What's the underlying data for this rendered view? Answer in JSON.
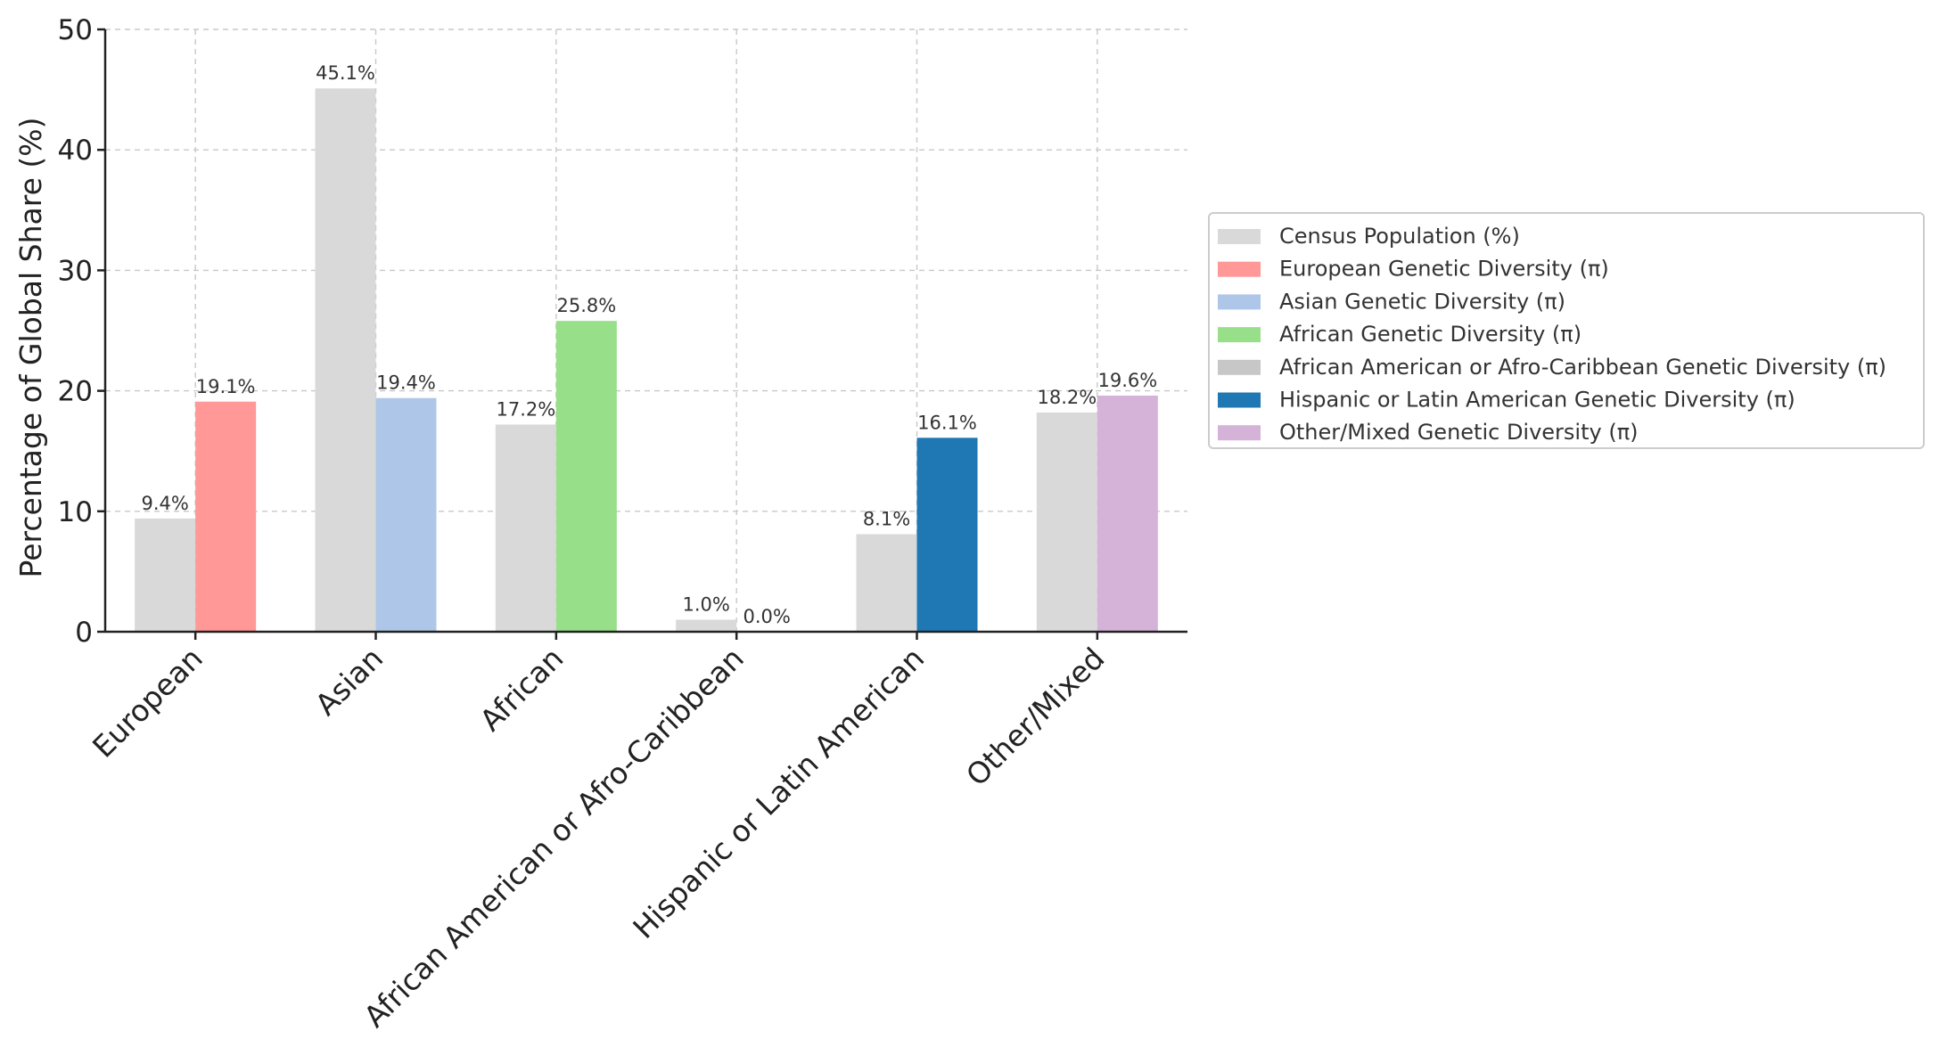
{
  "chart_data": {
    "type": "bar",
    "title": "",
    "xlabel": "",
    "ylabel": "Percentage of Global Share (%)",
    "ylim": [
      0,
      50
    ],
    "yticks": [
      0,
      10,
      20,
      30,
      40,
      50
    ],
    "grid": true,
    "legend_position": "right",
    "categories": [
      "European",
      "Asian",
      "African",
      "African American or Afro-Caribbean",
      "Hispanic or Latin American",
      "Other/Mixed"
    ],
    "census": {
      "name": "Census Population (%)",
      "color": "#d9d9d9",
      "values": [
        9.4,
        45.1,
        17.2,
        1.0,
        8.1,
        18.2
      ],
      "labels": [
        "9.4%",
        "45.1%",
        "17.2%",
        "1.0%",
        "8.1%",
        "18.2%"
      ]
    },
    "diversity": [
      {
        "name": "European Genetic Diversity (π)",
        "color": "#ff9896",
        "value": 19.1,
        "label": "19.1%"
      },
      {
        "name": "Asian Genetic Diversity (π)",
        "color": "#aec7e8",
        "value": 19.4,
        "label": "19.4%"
      },
      {
        "name": "African Genetic Diversity (π)",
        "color": "#98df8a",
        "value": 25.8,
        "label": "25.8%"
      },
      {
        "name": "African American or Afro-Caribbean Genetic Diversity (π)",
        "color": "#c7c7c7",
        "value": 0.0,
        "label": "0.0%"
      },
      {
        "name": "Hispanic or Latin American Genetic Diversity (π)",
        "color": "#1f77b4",
        "value": 16.1,
        "label": "16.1%"
      },
      {
        "name": "Other/Mixed Genetic Diversity (π)",
        "color": "#d5b3d8",
        "value": 19.6,
        "label": "19.6%"
      }
    ]
  }
}
